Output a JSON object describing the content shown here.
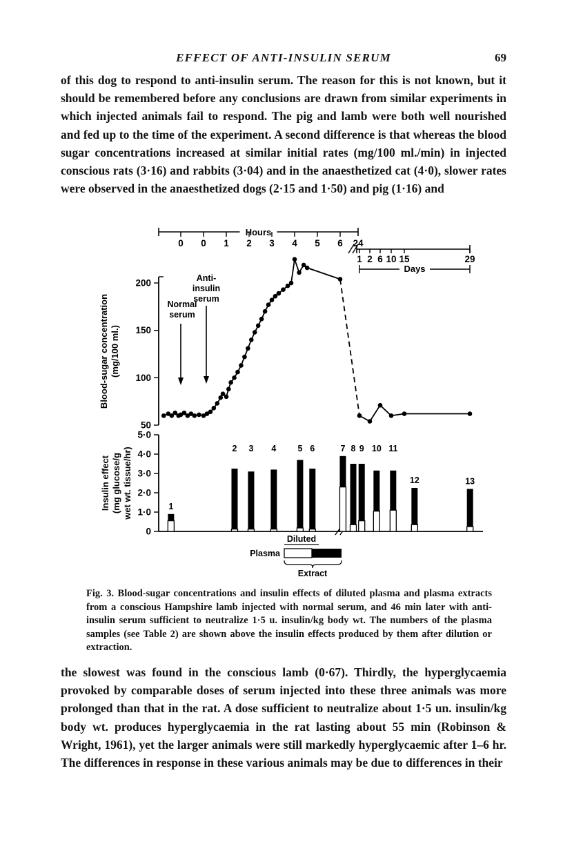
{
  "page": {
    "header": {
      "title": "EFFECT OF ANTI-INSULIN SERUM",
      "page_number": "69"
    },
    "paragraph_1": "of this dog to respond to anti-insulin serum. The reason for this is not known, but it should be remembered before any conclusions are drawn from similar experiments in which injected animals fail to respond. The pig and lamb were both well nourished and fed up to the time of the experiment. A second difference is that whereas the blood sugar concentrations increased at similar initial rates (mg/100 ml./min) in injected conscious rats (3·16) and rabbits (3·04) and in the anaesthetized cat (4·0), slower rates were observed in the anaesthetized dogs (2·15 and 1·50) and pig (1·16) and",
    "figure_caption": {
      "label": "Fig. 3.",
      "text": "Blood-sugar concentrations and insulin effects of diluted plasma and plasma extracts from a conscious Hampshire lamb injected with normal serum, and 46 min later with anti-insulin serum sufficient to neutralize 1·5 u. insulin/kg body wt. The numbers of the plasma samples (see Table 2) are shown above the insulin effects produced by them after dilution or extraction."
    },
    "paragraph_2": "the slowest was found in the conscious lamb (0·67). Thirdly, the hyperglycaemia provoked by comparable doses of serum injected into these three animals was more prolonged than that in the rat. A dose sufficient to neutralize about 1·5 un. insulin/kg body wt. produces hyperglycaemia in the rat lasting about 55 min (Robinson & Wright, 1961), yet the larger animals were still markedly hyperglycaemic after 1–6 hr. The differences in response in these various animals may be due to differences in their"
  },
  "chart_data": [
    {
      "type": "line",
      "title": "Blood-sugar concentration of conscious lamb after normal serum then anti-insulin serum",
      "ylabel_lines": [
        "Blood-sugar concentration",
        "(mg/100 ml.)"
      ],
      "ylim": [
        50,
        230
      ],
      "yticks": [
        50,
        100,
        150,
        200
      ],
      "hours_axis": {
        "label": "Hours",
        "tick_labels": [
          "0",
          "0",
          "1",
          "2",
          "3",
          "4",
          "5",
          "6"
        ],
        "break_tick_label": "24"
      },
      "days_axis": {
        "label": "Days",
        "tick_labels": [
          "1",
          "2",
          "6",
          "10",
          "15",
          "29"
        ]
      },
      "annotations": [
        {
          "lines": [
            "Normal",
            "serum"
          ],
          "at_hours_tick": 0
        },
        {
          "lines": [
            "Anti-",
            "insulin",
            "serum"
          ],
          "at_hours_tick": 1
        }
      ],
      "points_hours": [
        [
          -1.75,
          60
        ],
        [
          -1.55,
          62
        ],
        [
          -1.4,
          60
        ],
        [
          -1.25,
          63
        ],
        [
          -1.1,
          60
        ],
        [
          -1.0,
          61
        ],
        [
          -0.85,
          63
        ],
        [
          -0.7,
          60
        ],
        [
          -0.55,
          62
        ],
        [
          -0.4,
          60
        ],
        [
          -0.2,
          61
        ],
        [
          0,
          60
        ],
        [
          0.15,
          62
        ],
        [
          0.3,
          64
        ],
        [
          0.45,
          68
        ],
        [
          0.6,
          73
        ],
        [
          0.75,
          79
        ],
        [
          0.85,
          83
        ],
        [
          1.0,
          80
        ],
        [
          1.1,
          88
        ],
        [
          1.2,
          95
        ],
        [
          1.35,
          100
        ],
        [
          1.5,
          106
        ],
        [
          1.65,
          113
        ],
        [
          1.8,
          122
        ],
        [
          1.95,
          131
        ],
        [
          2.1,
          140
        ],
        [
          2.25,
          148
        ],
        [
          2.4,
          155
        ],
        [
          2.55,
          162
        ],
        [
          2.7,
          170
        ],
        [
          2.85,
          177
        ],
        [
          3.0,
          182
        ],
        [
          3.15,
          186
        ],
        [
          3.3,
          189
        ],
        [
          3.5,
          193
        ],
        [
          3.7,
          197
        ],
        [
          3.85,
          200
        ],
        [
          4.0,
          225
        ],
        [
          4.2,
          211
        ],
        [
          4.4,
          219
        ],
        [
          4.55,
          216
        ],
        [
          6.0,
          204
        ]
      ],
      "points_days": [
        [
          1,
          60
        ],
        [
          2,
          54
        ],
        [
          6,
          71
        ],
        [
          10,
          60
        ],
        [
          15,
          62
        ],
        [
          29,
          62
        ]
      ]
    },
    {
      "type": "stacked-bar",
      "ylabel_lines": [
        "Insulin effect",
        "(mg glucose/g",
        "wet wt. tissue/hr)"
      ],
      "ylim": [
        0,
        5.0
      ],
      "yticks": [
        0,
        1,
        2,
        3,
        4,
        5
      ],
      "ytick_labels": [
        "0",
        "1·0",
        "2·0",
        "3·0",
        "4·0",
        "5·0"
      ],
      "legend": {
        "diluted": "Diluted",
        "plasma": "Plasma",
        "extract": "Extract"
      },
      "bars": [
        {
          "sample": "1",
          "diluted": 0.55,
          "total": 0.9,
          "x_frac": 0.038
        },
        {
          "sample": "2",
          "diluted": 0.12,
          "total": 3.25,
          "x_frac": 0.234
        },
        {
          "sample": "3",
          "diluted": 0.12,
          "total": 3.1,
          "x_frac": 0.285
        },
        {
          "sample": "4",
          "diluted": 0.12,
          "total": 3.2,
          "x_frac": 0.355
        },
        {
          "sample": "5",
          "diluted": 0.18,
          "total": 3.7,
          "x_frac": 0.436
        },
        {
          "sample": "6",
          "diluted": 0.12,
          "total": 3.25,
          "x_frac": 0.474
        },
        {
          "sample": "7",
          "diluted": 2.3,
          "total": 3.9,
          "x_frac": 0.568
        },
        {
          "sample": "8",
          "diluted": 0.35,
          "total": 3.5,
          "x_frac": 0.6
        },
        {
          "sample": "9",
          "diluted": 0.55,
          "total": 3.5,
          "x_frac": 0.626
        },
        {
          "sample": "10",
          "diluted": 1.05,
          "total": 3.15,
          "x_frac": 0.672
        },
        {
          "sample": "11",
          "diluted": 1.1,
          "total": 3.15,
          "x_frac": 0.723
        },
        {
          "sample": "12",
          "diluted": 0.35,
          "total": 2.25,
          "x_frac": 0.789
        },
        {
          "sample": "13",
          "diluted": 0.25,
          "total": 2.2,
          "x_frac": 0.96
        }
      ],
      "axis_break_frac": 0.553
    }
  ]
}
